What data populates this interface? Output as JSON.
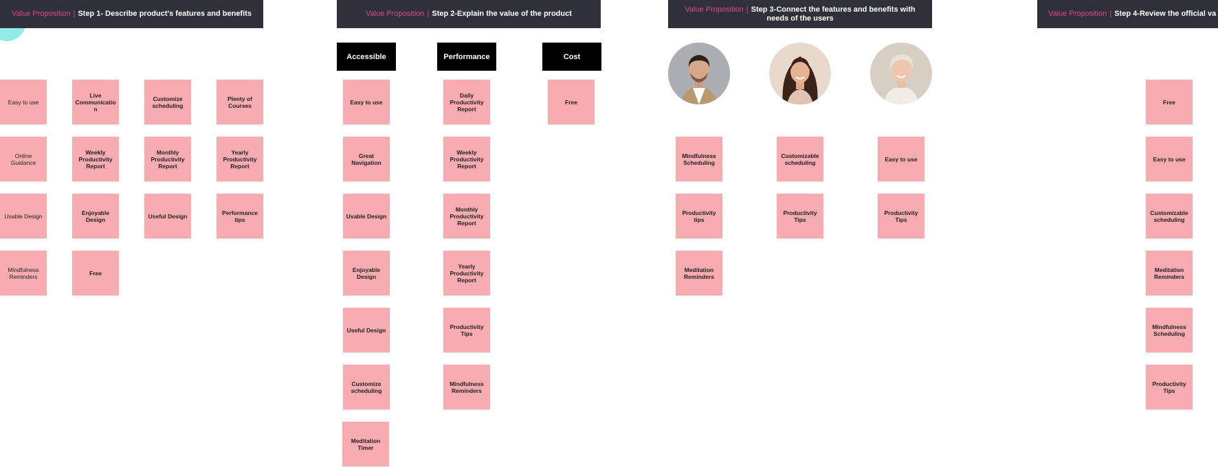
{
  "headers": [
    {
      "prefix": "Value Proposition",
      "sep": "|",
      "step": "Step 1- Describe product's features and benefits"
    },
    {
      "prefix": "Value Proposition",
      "sep": "|",
      "step": "Step 2-Explain the value of the product"
    },
    {
      "prefix": "Value Proposition",
      "sep": "|",
      "step": "Step 3-Connect the features and benefits with needs of the users"
    },
    {
      "prefix": "Value Proposition",
      "sep": "|",
      "step": "Step 4-Review the official va"
    }
  ],
  "step1": {
    "col1": [
      "Easy to use",
      "Online Guidance",
      "Usable Design",
      "Mindfulness Reminders"
    ],
    "col2": [
      "Live Communication",
      "Weekly Productivity Report",
      "Enjoyable Design",
      "Free"
    ],
    "col3": [
      "Customize scheduling",
      "Monthly Productivity Report",
      "Useful Design"
    ],
    "col4": [
      "Plenty of Courses",
      "Yearly Productivity Report",
      "Performance tips"
    ]
  },
  "step2": {
    "categories": [
      "Accessible",
      "Performance",
      "Cost"
    ],
    "accessible": [
      "Easy to use",
      "Great Navigation",
      "Usable Design",
      "Enjoyable Design",
      "Useful Design",
      "Customize scheduling",
      "Meditation Timer"
    ],
    "performance": [
      "Daily Productivity Report",
      "Weekly Productivity Report",
      "Monthly Productivity Report",
      "Yearly Productivity Report",
      "Productivity Tips",
      "Mindfulness Reminders"
    ],
    "cost": [
      "Free"
    ]
  },
  "step3": {
    "user1": [
      "Mindfulness Scheduling",
      "Productivity tips",
      "Meditation Reminders"
    ],
    "user2": [
      "Customizable scheduling",
      "Productivity Tips"
    ],
    "user3": [
      "Easy to use",
      "Productivity Tips"
    ]
  },
  "step4": {
    "notes": [
      "Free",
      "Easy to use",
      "Customizable scheduling",
      "Meditation Reminders",
      "Mindfulness Scheduling",
      "Productivity Tips"
    ]
  },
  "colors": {
    "header": "#30303a",
    "accent": "#d94a8c",
    "sticky": "#f7acb2",
    "category": "#000000"
  }
}
